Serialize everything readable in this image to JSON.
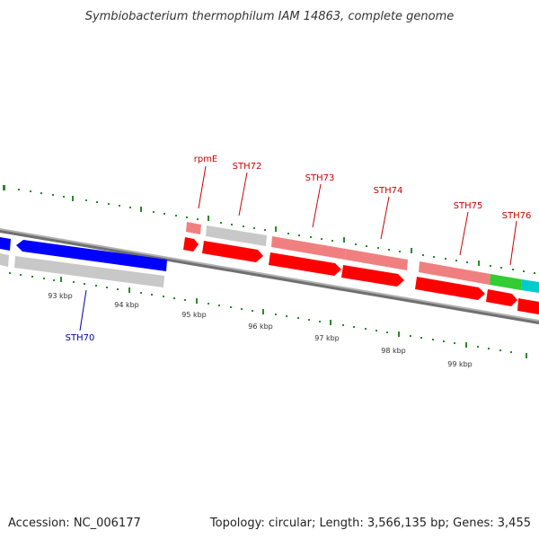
{
  "title": "Symbiobacterium thermophilum IAM 14863, complete genome",
  "footer": {
    "accession": "Accession: NC_006177",
    "summary": "Topology: circular; Length: 3,566,135 bp; Genes: 3,455"
  },
  "colors": {
    "forward_cds": "#ff0000",
    "forward_cds_light": "#f08080",
    "reverse_cds": "#0000ff",
    "other_feature": "#c8c8c8",
    "green_feature": "#33cc33",
    "cyan_feature": "#00cccc",
    "backbone": "#888888",
    "tick": "#2a8a2a",
    "label_forward": "#cc0000",
    "label_reverse": "#0000aa"
  },
  "ticks": [
    "93 kbp",
    "94 kbp",
    "95 kbp",
    "96 kbp",
    "97 kbp",
    "98 kbp",
    "99 kbp"
  ],
  "gene_labels_top": [
    "rpmE",
    "STH72",
    "STH73",
    "STH74",
    "STH75",
    "STH76"
  ],
  "gene_labels_bottom": [
    "STH70"
  ]
}
